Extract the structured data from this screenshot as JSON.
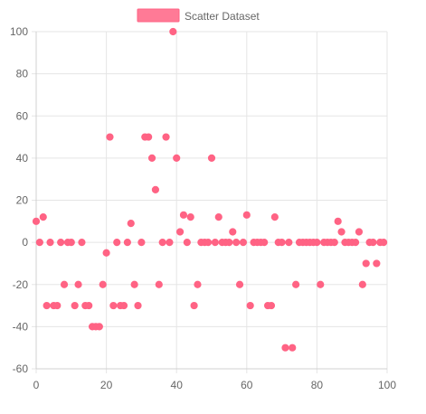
{
  "chart_data": {
    "type": "scatter",
    "title": "",
    "xlabel": "",
    "ylabel": "",
    "xlim": [
      0,
      100
    ],
    "ylim": [
      -60,
      100
    ],
    "x_ticks": [
      "0",
      "20",
      "40",
      "60",
      "80",
      "100"
    ],
    "y_ticks": [
      "100",
      "80",
      "60",
      "40",
      "20",
      "0",
      "-20",
      "-40",
      "-60"
    ],
    "grid": true,
    "legend_position": "top-center",
    "series": [
      {
        "name": "Scatter Dataset",
        "color": "#ff6384",
        "points": [
          [
            0,
            10
          ],
          [
            1,
            0
          ],
          [
            2,
            12
          ],
          [
            3,
            -30
          ],
          [
            4,
            0
          ],
          [
            5,
            -30
          ],
          [
            6,
            -30
          ],
          [
            7,
            0
          ],
          [
            8,
            -20
          ],
          [
            9,
            0
          ],
          [
            10,
            0
          ],
          [
            11,
            -30
          ],
          [
            12,
            -20
          ],
          [
            13,
            0
          ],
          [
            14,
            -30
          ],
          [
            15,
            -30
          ],
          [
            16,
            -40
          ],
          [
            17,
            -40
          ],
          [
            18,
            -40
          ],
          [
            19,
            -20
          ],
          [
            20,
            -5
          ],
          [
            21,
            50
          ],
          [
            22,
            -30
          ],
          [
            23,
            0
          ],
          [
            24,
            -30
          ],
          [
            25,
            -30
          ],
          [
            26,
            0
          ],
          [
            27,
            9
          ],
          [
            28,
            -20
          ],
          [
            29,
            -30
          ],
          [
            30,
            0
          ],
          [
            31,
            50
          ],
          [
            32,
            50
          ],
          [
            33,
            40
          ],
          [
            34,
            25
          ],
          [
            35,
            -20
          ],
          [
            36,
            0
          ],
          [
            37,
            50
          ],
          [
            38,
            0
          ],
          [
            39,
            100
          ],
          [
            40,
            40
          ],
          [
            41,
            5
          ],
          [
            42,
            13
          ],
          [
            43,
            0
          ],
          [
            44,
            12
          ],
          [
            45,
            -30
          ],
          [
            46,
            -20
          ],
          [
            47,
            0
          ],
          [
            48,
            0
          ],
          [
            49,
            0
          ],
          [
            50,
            40
          ],
          [
            51,
            0
          ],
          [
            52,
            12
          ],
          [
            53,
            0
          ],
          [
            54,
            0
          ],
          [
            55,
            0
          ],
          [
            56,
            5
          ],
          [
            57,
            0
          ],
          [
            58,
            -20
          ],
          [
            59,
            0
          ],
          [
            60,
            13
          ],
          [
            61,
            -30
          ],
          [
            62,
            0
          ],
          [
            63,
            0
          ],
          [
            64,
            0
          ],
          [
            65,
            0
          ],
          [
            66,
            -30
          ],
          [
            67,
            -30
          ],
          [
            68,
            12
          ],
          [
            69,
            0
          ],
          [
            70,
            0
          ],
          [
            71,
            -50
          ],
          [
            72,
            0
          ],
          [
            73,
            -50
          ],
          [
            74,
            -20
          ],
          [
            75,
            0
          ],
          [
            76,
            0
          ],
          [
            77,
            0
          ],
          [
            78,
            0
          ],
          [
            79,
            0
          ],
          [
            80,
            0
          ],
          [
            81,
            -20
          ],
          [
            82,
            0
          ],
          [
            83,
            0
          ],
          [
            84,
            0
          ],
          [
            85,
            0
          ],
          [
            86,
            10
          ],
          [
            87,
            5
          ],
          [
            88,
            0
          ],
          [
            89,
            0
          ],
          [
            90,
            0
          ],
          [
            91,
            0
          ],
          [
            92,
            5
          ],
          [
            93,
            -20
          ],
          [
            94,
            -10
          ],
          [
            95,
            0
          ],
          [
            96,
            0
          ],
          [
            97,
            -10
          ],
          [
            98,
            0
          ],
          [
            99,
            0
          ]
        ]
      }
    ]
  }
}
